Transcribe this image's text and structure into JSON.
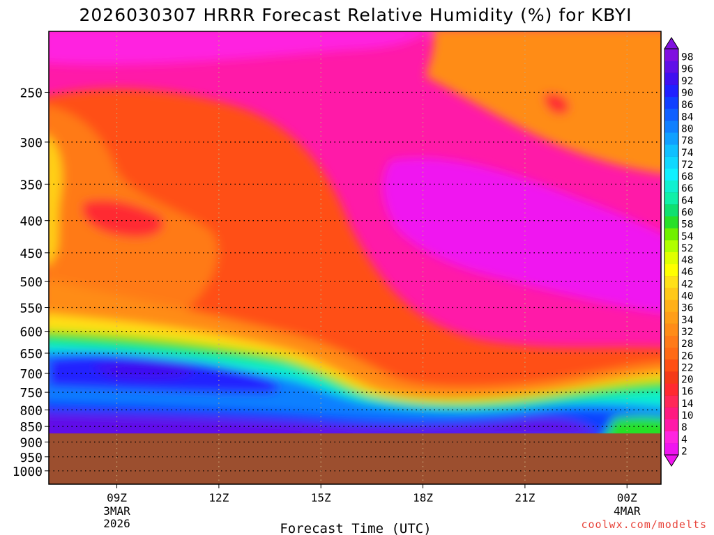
{
  "title": "2026030307 HRRR Forecast Relative Humidity (%) for KBYI",
  "watermark": "coolwx.com/modelts",
  "chart_data": {
    "type": "heatmap",
    "title": "2026030307 HRRR Forecast Relative Humidity (%) for KBYI",
    "xlabel": "Forecast Time (UTC)",
    "ylabel": "",
    "x_ticks": [
      {
        "label": "09Z",
        "sub": [
          "3MAR",
          "2026"
        ],
        "hour": 9
      },
      {
        "label": "12Z",
        "sub": [],
        "hour": 12
      },
      {
        "label": "15Z",
        "sub": [],
        "hour": 15
      },
      {
        "label": "18Z",
        "sub": [],
        "hour": 18
      },
      {
        "label": "21Z",
        "sub": [],
        "hour": 21
      },
      {
        "label": "00Z",
        "sub": [
          "4MAR"
        ],
        "hour": 24
      }
    ],
    "xlim_hours": [
      7,
      25
    ],
    "y_ticks": [
      250,
      300,
      350,
      400,
      450,
      500,
      550,
      600,
      650,
      700,
      750,
      800,
      850,
      900,
      950,
      1000
    ],
    "ylim_hPa": [
      200,
      1050
    ],
    "surface_pressure_hPa": 872,
    "grid": true,
    "colorbar": {
      "levels": [
        2,
        4,
        8,
        10,
        14,
        16,
        20,
        22,
        26,
        28,
        32,
        34,
        36,
        40,
        42,
        46,
        48,
        52,
        54,
        58,
        60,
        64,
        66,
        68,
        72,
        74,
        78,
        80,
        84,
        86,
        90,
        92,
        96,
        98
      ],
      "colors": [
        "#f014f0",
        "#ff24e0",
        "#ff1aa8",
        "#ff1a80",
        "#ff2858",
        "#ff2a30",
        "#f53a18",
        "#ff4f14",
        "#ff6a14",
        "#ff7a18",
        "#ff8c18",
        "#ff9e18",
        "#ffb018",
        "#ffc818",
        "#ffe018",
        "#ffff00",
        "#e0ff00",
        "#b0ff00",
        "#70f000",
        "#28e028",
        "#10e070",
        "#10f0a8",
        "#10f0d0",
        "#10f0ff",
        "#10d8ff",
        "#10c0ff",
        "#10a0ff",
        "#1080ff",
        "#1060ff",
        "#1040ff",
        "#2020ff",
        "#4010f0",
        "#6010e8",
        "#8010e0"
      ]
    },
    "legend_placement": "right"
  }
}
